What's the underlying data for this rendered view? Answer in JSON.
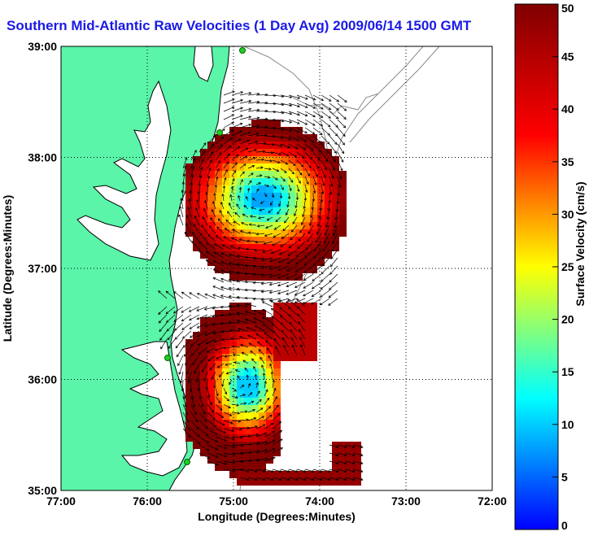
{
  "title": "Southern Mid-Atlantic Raw Velocities (1 Day Avg) 2009/06/14 1500 GMT",
  "map": {
    "xlabel": "Longitude (Degrees:Minutes)",
    "ylabel": "Latitude (Degrees:Minutes)",
    "x_ticks": [
      "77:00",
      "76:00",
      "75:00",
      "74:00",
      "73:00",
      "72:00"
    ],
    "y_ticks": [
      "39:00",
      "38:00",
      "37:00",
      "36:00",
      "35:00"
    ],
    "lon_range": [
      -77,
      -72
    ],
    "lat_range": [
      35,
      39
    ],
    "grid": true,
    "land_color": "#5af5a8",
    "coast_color": "#000000",
    "bathymetry_color": "#808080",
    "station_color": "#22cc22"
  },
  "colorbar": {
    "label": "Surface Velocity (cm/s)",
    "min": 0,
    "max": 50,
    "ticks": [
      "0",
      "5",
      "10",
      "15",
      "20",
      "25",
      "30",
      "35",
      "40",
      "45",
      "50"
    ]
  }
}
